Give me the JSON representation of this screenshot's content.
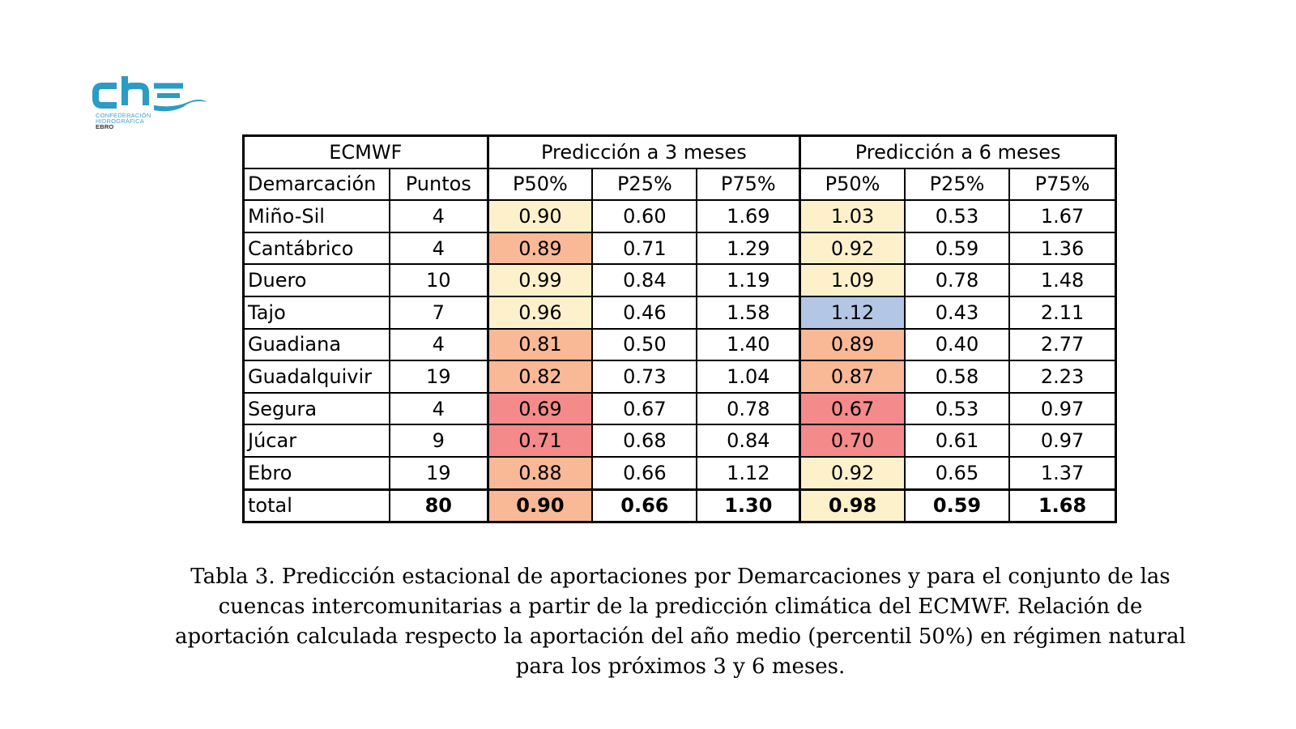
{
  "logo": {
    "text": "che",
    "org_line1": "CONFEDERACIÓN",
    "org_line2": "HIDROGRÁFICA",
    "org_line3": "EBRO",
    "color": "#2b9cc3"
  },
  "table": {
    "group_headers": [
      "ECMWF",
      "Predicción a 3 meses",
      "Predicción a 6 meses"
    ],
    "column_headers": [
      "Demarcación",
      "Puntos",
      "P50%",
      "P25%",
      "P75%",
      "P50%",
      "P25%",
      "P75%"
    ],
    "rows": [
      {
        "name": "Miño-Sil",
        "puntos": "4",
        "m3": [
          "0.90",
          "0.60",
          "1.69"
        ],
        "m6": [
          "1.03",
          "0.53",
          "1.67"
        ],
        "c3": "#fdf1cc",
        "c6": "#fdf1cc"
      },
      {
        "name": "Cantábrico",
        "puntos": "4",
        "m3": [
          "0.89",
          "0.71",
          "1.29"
        ],
        "m6": [
          "0.92",
          "0.59",
          "1.36"
        ],
        "c3": "#f9b896",
        "c6": "#fdf1cc"
      },
      {
        "name": "Duero",
        "puntos": "10",
        "m3": [
          "0.99",
          "0.84",
          "1.19"
        ],
        "m6": [
          "1.09",
          "0.78",
          "1.48"
        ],
        "c3": "#fdf1cc",
        "c6": "#fdf1cc"
      },
      {
        "name": "Tajo",
        "puntos": "7",
        "m3": [
          "0.96",
          "0.46",
          "1.58"
        ],
        "m6": [
          "1.12",
          "0.43",
          "2.11"
        ],
        "c3": "#fdf1cc",
        "c6": "#b4c6e6"
      },
      {
        "name": "Guadiana",
        "puntos": "4",
        "m3": [
          "0.81",
          "0.50",
          "1.40"
        ],
        "m6": [
          "0.89",
          "0.40",
          "2.77"
        ],
        "c3": "#f9b896",
        "c6": "#f9b896"
      },
      {
        "name": "Guadalquivir",
        "puntos": "19",
        "m3": [
          "0.82",
          "0.73",
          "1.04"
        ],
        "m6": [
          "0.87",
          "0.58",
          "2.23"
        ],
        "c3": "#f9b896",
        "c6": "#f9b896"
      },
      {
        "name": "Segura",
        "puntos": "4",
        "m3": [
          "0.69",
          "0.67",
          "0.78"
        ],
        "m6": [
          "0.67",
          "0.53",
          "0.97"
        ],
        "c3": "#f58a8a",
        "c6": "#f58a8a"
      },
      {
        "name": "Júcar",
        "puntos": "9",
        "m3": [
          "0.71",
          "0.68",
          "0.84"
        ],
        "m6": [
          "0.70",
          "0.61",
          "0.97"
        ],
        "c3": "#f58a8a",
        "c6": "#f58a8a"
      },
      {
        "name": "Ebro",
        "puntos": "19",
        "m3": [
          "0.88",
          "0.66",
          "1.12"
        ],
        "m6": [
          "0.92",
          "0.65",
          "1.37"
        ],
        "c3": "#f9b896",
        "c6": "#fdf1cc"
      }
    ],
    "total": {
      "name": "total",
      "puntos": "80",
      "m3": [
        "0.90",
        "0.66",
        "1.30"
      ],
      "m6": [
        "0.98",
        "0.59",
        "1.68"
      ],
      "c3": "#f9b896",
      "c6": "#fdf1cc"
    }
  },
  "caption": {
    "line1": "Tabla 3. Predicción estacional de aportaciones por Demarcaciones y para el conjunto de las",
    "line2": "cuencas intercomunitarias a partir de la predicción climática del ECMWF. Relación de",
    "line3": "aportación calculada respecto la aportación del año medio (percentil 50%) en régimen natural",
    "line4": "para los próximos 3 y 6 meses."
  }
}
